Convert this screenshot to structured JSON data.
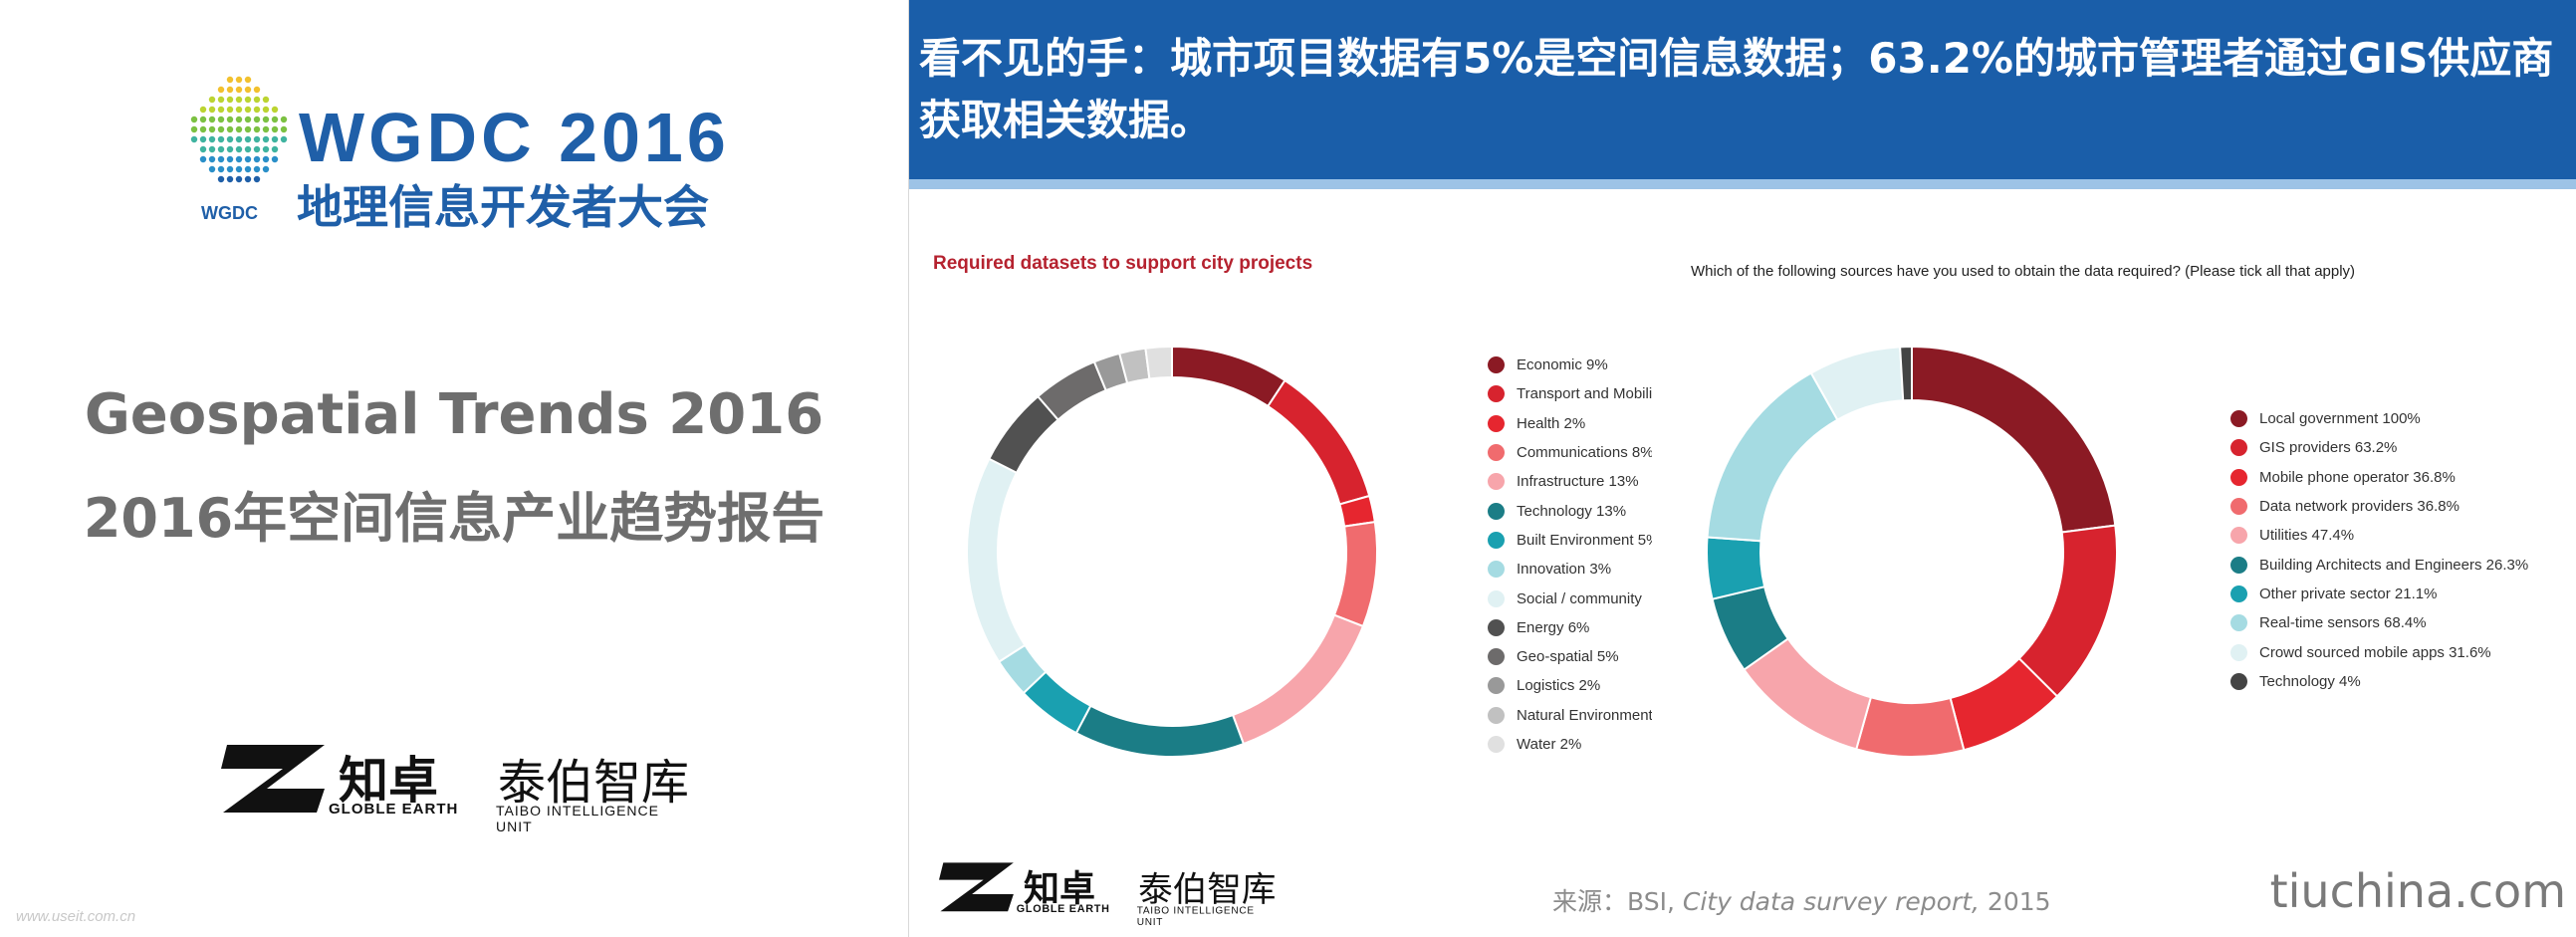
{
  "left": {
    "logo": {
      "main": "WGDC 2016",
      "cn": "地理信息开发者大会",
      "small": "WGDC"
    },
    "title_en": "Geospatial Trends 2016",
    "title_cn": "2016年空间信息产业趋势报告",
    "brand": {
      "zh": "知卓",
      "en": "GLOBLE EARTH",
      "zh2": "泰伯智库",
      "en2": "TAIBO INTELLIGENCE UNIT"
    },
    "watermark": "www.useit.com.cn"
  },
  "right": {
    "headline": "看不见的手：城市项目数据有5%是空间信息数据；63.2%的城市管理者通过GIS供应商获取相关数据。",
    "brand": {
      "zh": "知卓",
      "en": "GLOBLE EARTH",
      "zh2": "泰伯智库",
      "en2": "TAIBO INTELLIGENCE UNIT"
    },
    "source_prefix": "来源：BSI, ",
    "source_title": "City data survey report,",
    "source_year": " 2015",
    "site": "tiuchina.com"
  },
  "chart_data": [
    {
      "type": "pie",
      "title": "Required datasets to support city projects",
      "donut": true,
      "legend_position": "right",
      "categories": [
        "Economic",
        "Transport and Mobili",
        "Health",
        "Communications",
        "Infrastructure",
        "Technology",
        "Built Environment",
        "Innovation",
        "Social / community",
        "Energy",
        "Geo-spatial",
        "Logistics",
        "Natural Environment",
        "Water"
      ],
      "legend_labels": [
        "Economic 9%",
        "Transport and Mobili",
        "Health 2%",
        "Communications 8%",
        "Infrastructure 13%",
        "Technology 13%",
        "Built Environment 5%",
        "Innovation 3%",
        "Social / community",
        "Energy 6%",
        "Geo-spatial 5%",
        "Logistics 2%",
        "Natural Environment",
        "Water 2%"
      ],
      "values": [
        9,
        11,
        2,
        8,
        13,
        13,
        5,
        3,
        16,
        6,
        5,
        2,
        2,
        2
      ],
      "colors": [
        "#8b1a24",
        "#d7232e",
        "#e6262f",
        "#f06b6e",
        "#f7a5ab",
        "#1b7d86",
        "#1aa0b0",
        "#a5dbe2",
        "#e0f1f3",
        "#515151",
        "#6d6b6b",
        "#999999",
        "#c1c1c1",
        "#e0e0e0"
      ]
    },
    {
      "type": "pie",
      "title": "Which of the following sources have you used to obtain the data required? (Please tick all that apply)",
      "donut": true,
      "legend_position": "right",
      "categories": [
        "Local government",
        "GIS providers",
        "Mobile phone operator",
        "Data network providers",
        "Utilities",
        "Building Architects and Engineers",
        "Other private sector",
        "Real-time sensors",
        "Crowd sourced mobile apps",
        "Technology"
      ],
      "legend_labels": [
        "Local government 100%",
        "GIS providers 63.2%",
        "Mobile phone operator 36.8%",
        "Data network providers 36.8%",
        "Utilities 47.4%",
        "Building Architects and Engineers 26.3%",
        "Other private sector 21.1%",
        "Real-time sensors 68.4%",
        "Crowd sourced mobile apps 31.6%",
        "Technology 4%"
      ],
      "values": [
        100,
        63.2,
        36.8,
        36.8,
        47.4,
        26.3,
        21.1,
        68.4,
        31.6,
        4
      ],
      "colors": [
        "#8b1a24",
        "#d7232e",
        "#e6262f",
        "#f06b6e",
        "#f7a5ab",
        "#1b7d86",
        "#1aa0b0",
        "#a5dbe2",
        "#e0f1f3",
        "#444444"
      ]
    }
  ]
}
